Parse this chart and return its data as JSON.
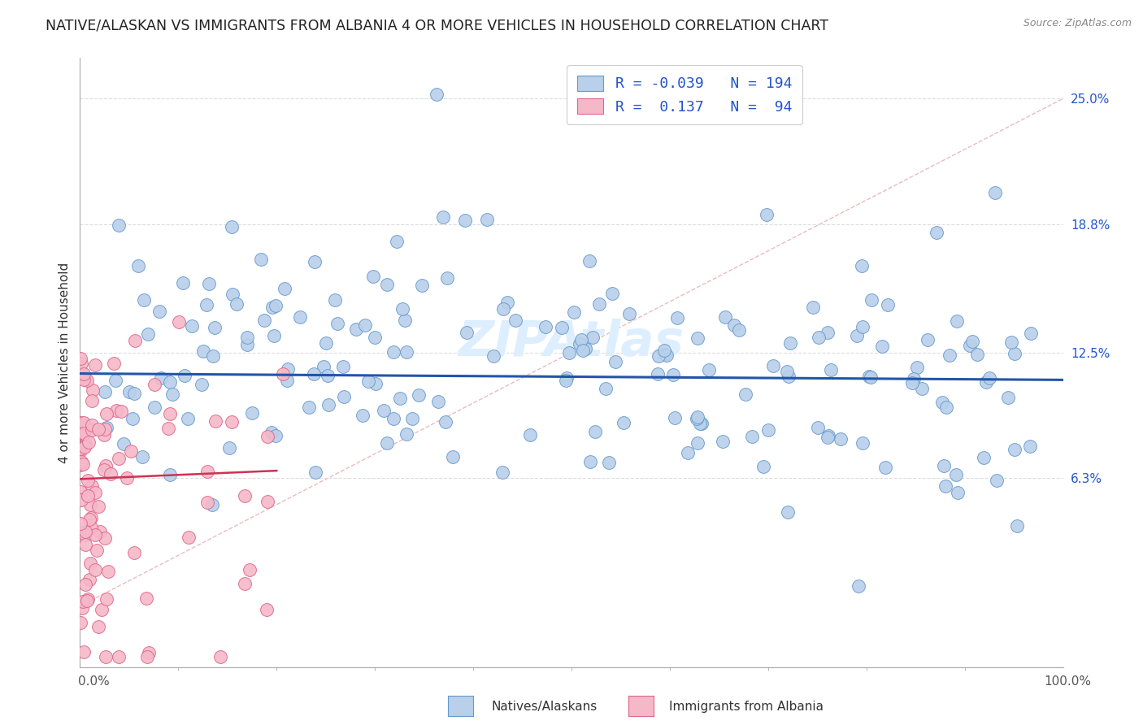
{
  "title": "NATIVE/ALASKAN VS IMMIGRANTS FROM ALBANIA 4 OR MORE VEHICLES IN HOUSEHOLD CORRELATION CHART",
  "source": "Source: ZipAtlas.com",
  "ylabel": "4 or more Vehicles in Household",
  "xlim": [
    0.0,
    100.0
  ],
  "ylim": [
    -3.0,
    27.0
  ],
  "ytick_vals": [
    6.3,
    12.5,
    18.8,
    25.0
  ],
  "ytick_labels": [
    "6.3%",
    "12.5%",
    "18.8%",
    "25.0%"
  ],
  "native_R": -0.039,
  "native_N": 194,
  "albania_R": 0.137,
  "albania_N": 94,
  "native_color": "#b8d0ea",
  "native_edge_color": "#6699cc",
  "albania_color": "#f5b8c8",
  "albania_edge_color": "#dd6688",
  "native_trend_color": "#2255aa",
  "albania_trend_color": "#cc3355",
  "ref_line_color": "#e8b4b8",
  "grid_color": "#dddddd",
  "watermark_color": "#ddeeff",
  "legend_box_edge": "#cccccc",
  "text_blue": "#2255cc",
  "background_color": "#ffffff"
}
